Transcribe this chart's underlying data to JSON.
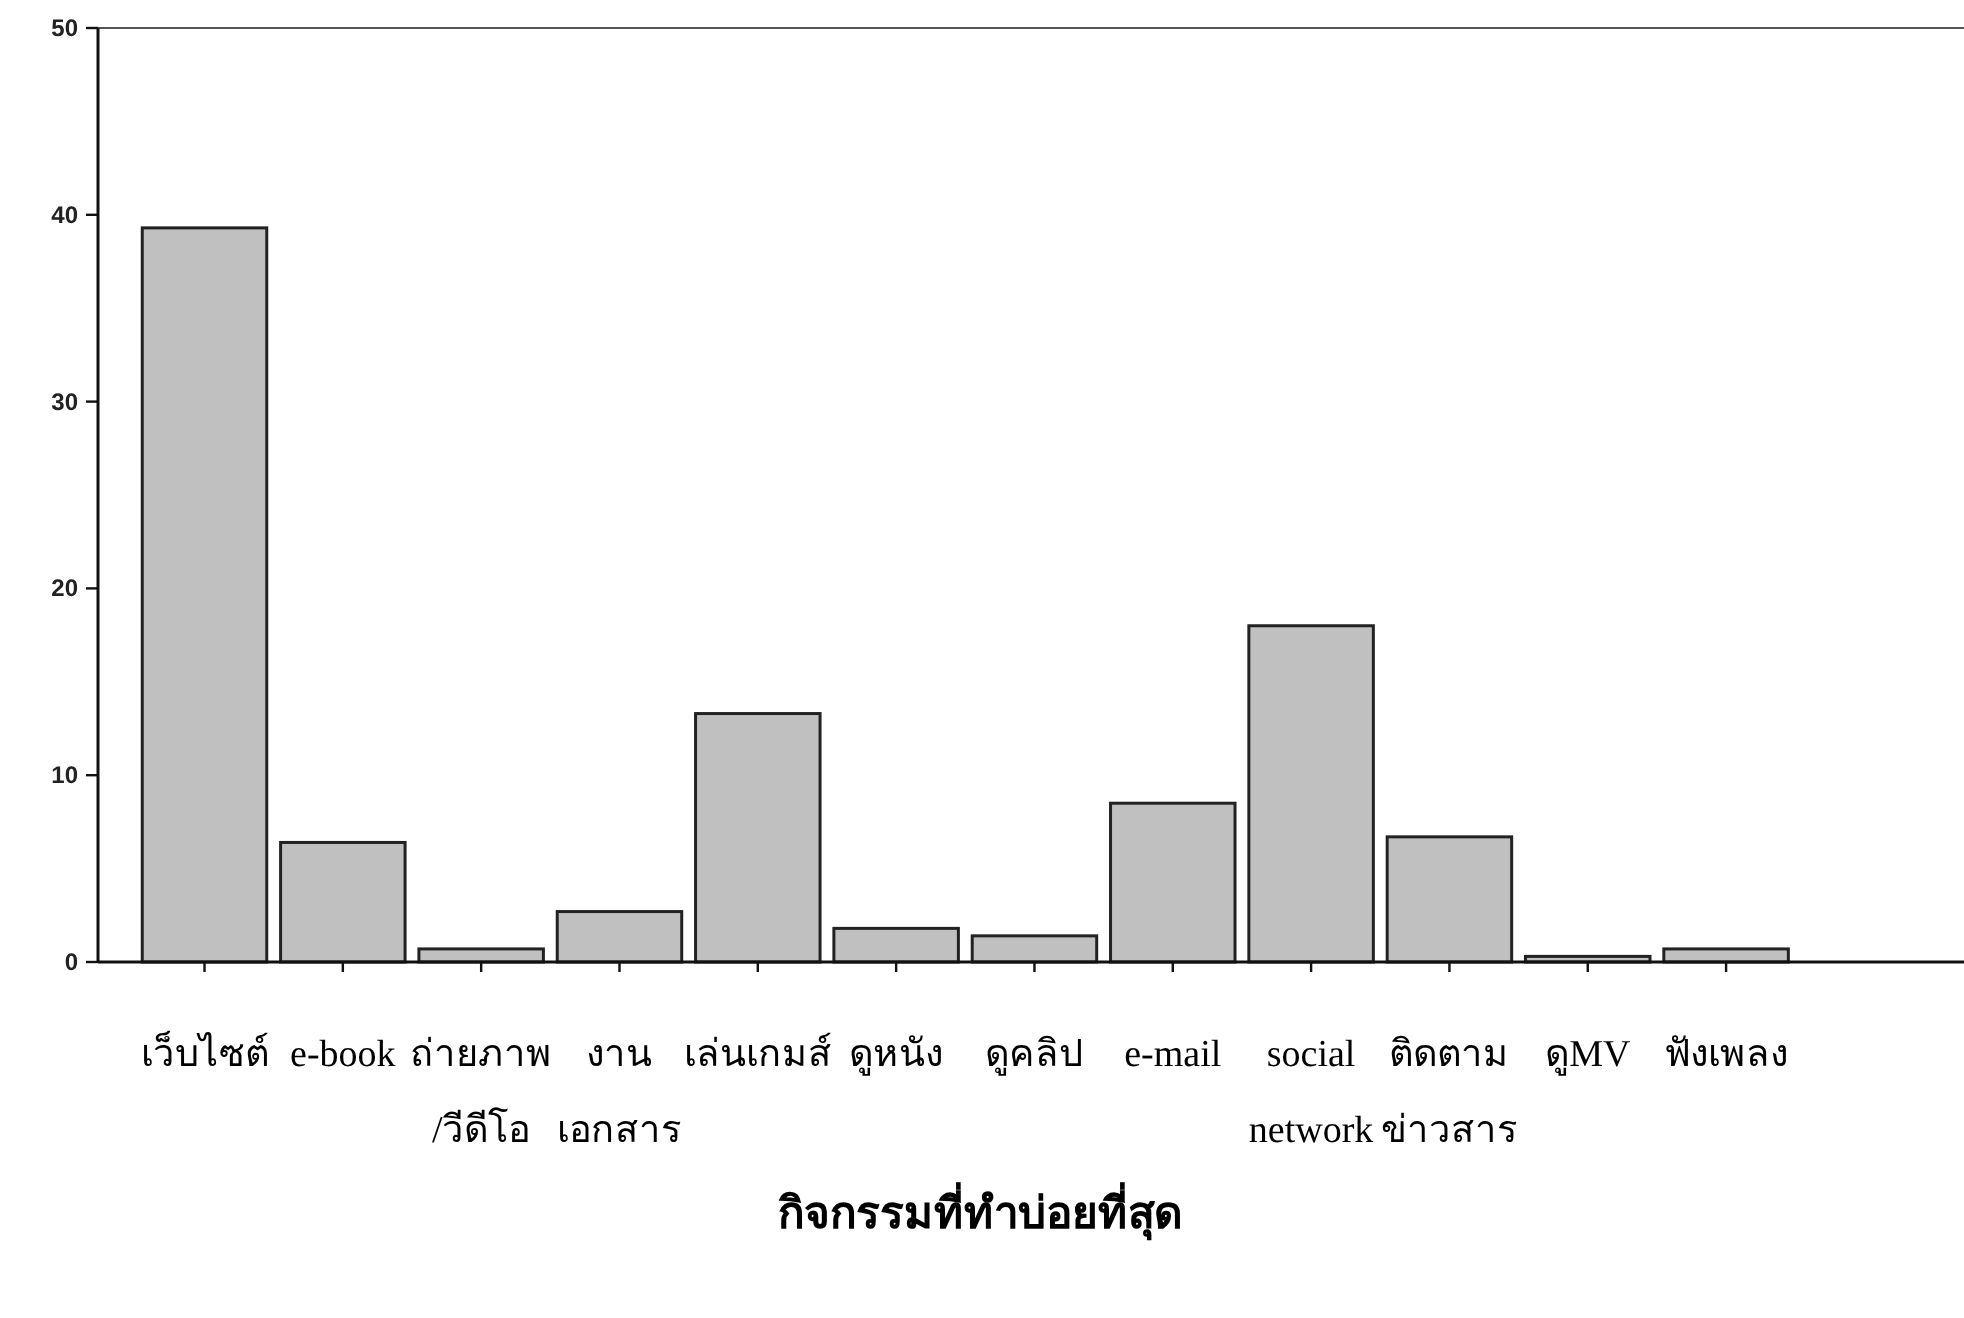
{
  "chart_data": {
    "type": "bar",
    "xlabel": "กิจกรรมที่ทำบ่อยที่สุด",
    "categories": [
      "เว็บไซต์",
      "e-book",
      "ถ่ายภาพ\n/วีดีโอ",
      "งาน\nเอกสาร",
      "เล่นเกมส์",
      "ดูหนัง",
      "ดูคลิป",
      "e-mail",
      "social\nnetwork",
      "ติดตาม\nข่าวสาร",
      "ดูMV",
      "ฟังเพลง"
    ],
    "values": [
      39.3,
      6.4,
      0.7,
      2.7,
      13.3,
      1.8,
      1.4,
      8.5,
      18.0,
      6.7,
      0.3,
      0.7
    ],
    "color": "#c0c0c0",
    "ylim": [
      0,
      50
    ],
    "yticks": [
      0,
      10,
      20,
      30,
      40,
      50
    ],
    "grid": false
  }
}
